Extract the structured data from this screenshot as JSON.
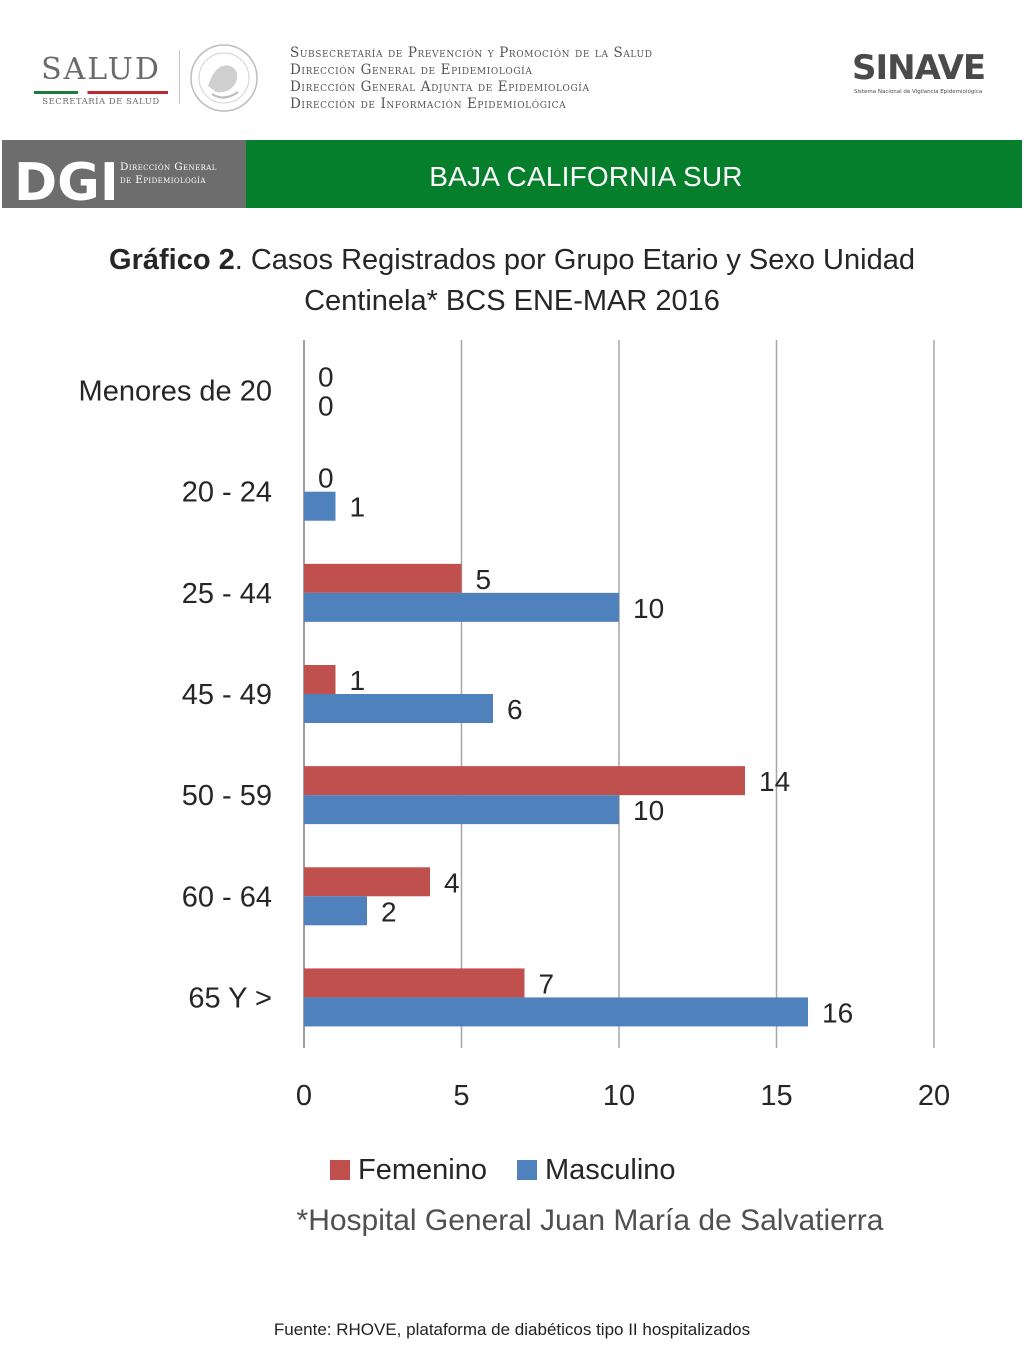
{
  "header": {
    "salud_logo": "SALUD",
    "salud_subtitle": "SECRETARÍA DE SALUD",
    "seal_text": "ESTADOS UNIDOS MEXICANOS",
    "gov_lines": [
      "Subsecretaría de Prevención y Promoción de la Salud",
      "Dirección General de Epidemiología",
      "Dirección General Adjunta de Epidemiología",
      "Dirección de Información Epidemiológica"
    ],
    "sinave_logo": "SINAVE",
    "sinave_subtitle": "Sistema Nacional de Vigilancia Epidemiológica"
  },
  "banner": {
    "dge_logo": "DGE",
    "dge_line1": "Dirección General",
    "dge_line2": "de Epidemiología",
    "title": "BAJA CALIFORNIA SUR",
    "colors": {
      "gray": "#6d6d6d",
      "green": "#067f2c"
    }
  },
  "chart_title": {
    "bold": "Gráfico 2",
    "rest": ". Casos Registrados por Grupo Etario y Sexo Unidad Centinela* BCS ENE-MAR 2016"
  },
  "chart_data": {
    "type": "bar",
    "orientation": "horizontal",
    "categories": [
      "Menores de 20",
      "20 - 24",
      "25 - 44",
      "45 - 49",
      "50 - 59",
      "60 - 64",
      "65 Y >"
    ],
    "series": [
      {
        "name": "Femenino",
        "color": "#c0504d",
        "values": [
          0,
          0,
          5,
          1,
          14,
          4,
          7
        ]
      },
      {
        "name": "Masculino",
        "color": "#4f81bd",
        "values": [
          0,
          1,
          10,
          6,
          10,
          2,
          16
        ]
      }
    ],
    "xlim": [
      0,
      20
    ],
    "xticks": [
      0,
      5,
      10,
      15,
      20
    ],
    "grid": true,
    "data_labels": true,
    "legend": "bottom"
  },
  "footnote": "*Hospital General Juan María de Salvatierra",
  "source": "Fuente: RHOVE, plataforma de diabéticos tipo II hospitalizados"
}
